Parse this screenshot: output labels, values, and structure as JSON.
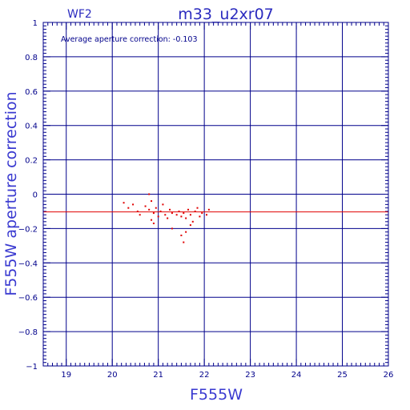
{
  "chart_data": {
    "type": "scatter",
    "title": "m33_u2xr07",
    "chip_label": "WF2",
    "annotation": "Average aperture correction: -0.103",
    "xlabel": "F555W",
    "ylabel": "F555W aperture correction",
    "xlim": [
      18.5,
      26
    ],
    "ylim": [
      -1,
      1
    ],
    "x_ticks": [
      19,
      20,
      21,
      22,
      23,
      24,
      25,
      26
    ],
    "y_ticks": [
      -1,
      -0.8,
      -0.6,
      -0.4,
      -0.2,
      0,
      0.2,
      0.4,
      0.6,
      0.8,
      1
    ],
    "x_tick_labels": [
      "19",
      "20",
      "21",
      "22",
      "23",
      "24",
      "25",
      "26"
    ],
    "y_tick_labels": [
      "−1",
      "−0.8",
      "−0.6",
      "−0.4",
      "−0.2",
      "0",
      "0.2",
      "0.4",
      "0.6",
      "0.8",
      "1"
    ],
    "grid": true,
    "reference_line_y": -0.103,
    "colors": {
      "points": "#e00000",
      "reference_line": "#e00000",
      "grid": "#00008b",
      "axes": "#00008b"
    },
    "series": [
      {
        "points": [
          [
            20.25,
            -0.05
          ],
          [
            20.35,
            -0.08
          ],
          [
            20.45,
            -0.06
          ],
          [
            20.55,
            -0.1
          ],
          [
            20.6,
            -0.12
          ],
          [
            20.72,
            -0.07
          ],
          [
            20.8,
            -0.09
          ],
          [
            20.85,
            -0.04
          ],
          [
            20.9,
            -0.11
          ],
          [
            20.95,
            -0.08
          ],
          [
            21.0,
            -0.13
          ],
          [
            21.05,
            -0.1
          ],
          [
            21.1,
            -0.06
          ],
          [
            21.15,
            -0.12
          ],
          [
            21.2,
            -0.14
          ],
          [
            21.25,
            -0.09
          ],
          [
            21.3,
            -0.11
          ],
          [
            20.8,
            0.0
          ],
          [
            20.85,
            -0.15
          ],
          [
            20.9,
            -0.17
          ],
          [
            21.4,
            -0.12
          ],
          [
            21.45,
            -0.1
          ],
          [
            21.5,
            -0.13
          ],
          [
            21.55,
            -0.11
          ],
          [
            21.6,
            -0.14
          ],
          [
            21.65,
            -0.09
          ],
          [
            21.7,
            -0.12
          ],
          [
            21.75,
            -0.16
          ],
          [
            21.8,
            -0.1
          ],
          [
            21.85,
            -0.08
          ],
          [
            21.9,
            -0.13
          ],
          [
            21.95,
            -0.11
          ],
          [
            21.3,
            -0.2
          ],
          [
            21.5,
            -0.24
          ],
          [
            21.55,
            -0.28
          ],
          [
            21.6,
            -0.22
          ],
          [
            21.7,
            -0.18
          ],
          [
            22.05,
            -0.12
          ],
          [
            22.1,
            -0.09
          ]
        ]
      }
    ]
  }
}
